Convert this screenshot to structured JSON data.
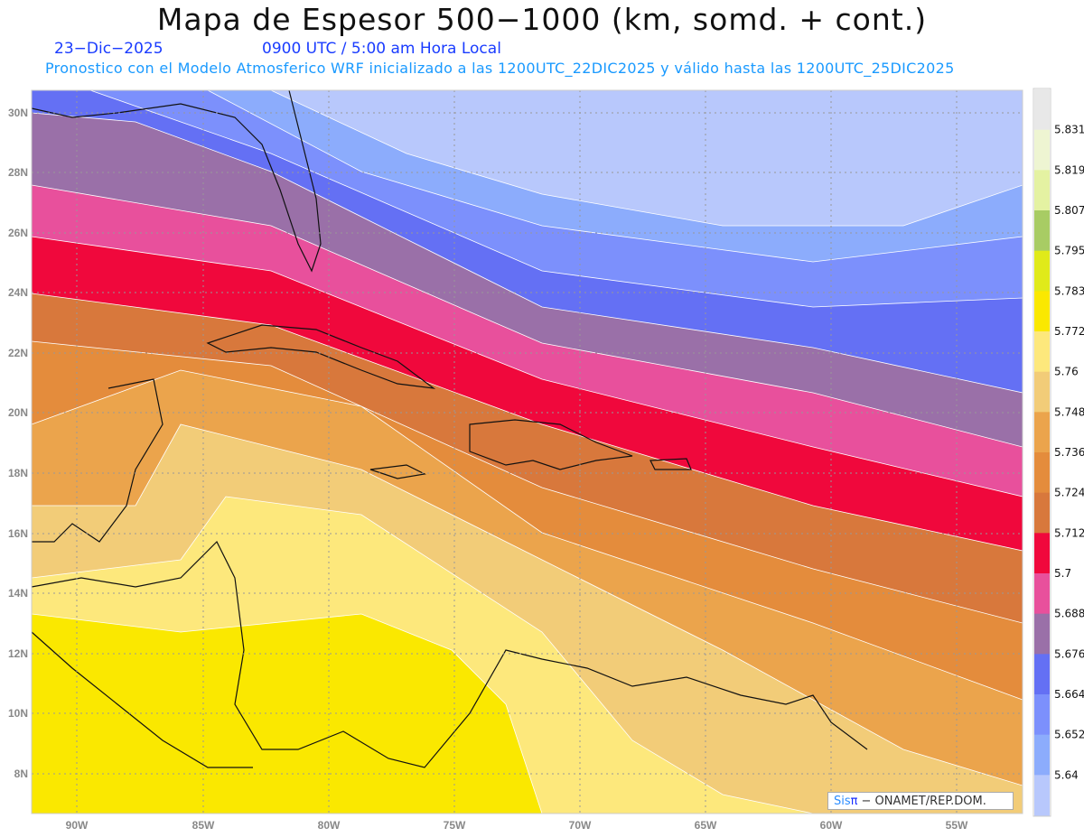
{
  "header": {
    "title": "Mapa de Espesor 500−1000 (km, somd. + cont.)",
    "date": "23−Dic−2025",
    "time": "0900 UTC / 5:00 am Hora Local",
    "subtitle": "Pronostico con el Modelo Atmosferico WRF inicializado a las 1200UTC_22DIC2025 y válido hasta las  1200UTC_25DIC2025"
  },
  "axes": {
    "lon_labels": [
      "90W",
      "85W",
      "80W",
      "75W",
      "70W",
      "65W",
      "60W",
      "55W"
    ],
    "lat_labels": [
      "30N",
      "28N",
      "26N",
      "24N",
      "22N",
      "20N",
      "18N",
      "16N",
      "14N",
      "12N",
      "10N",
      "8N"
    ]
  },
  "legend": {
    "levels": [
      "5.831",
      "5.819",
      "5.807",
      "5.795",
      "5.783",
      "5.772",
      "5.76",
      "5.748",
      "5.736",
      "5.724",
      "5.712",
      "5.7",
      "5.688",
      "5.676",
      "5.664",
      "5.652",
      "5.64"
    ],
    "colors": [
      "#e8e8e8",
      "#eef5d2",
      "#e4f2a2",
      "#a8cc64",
      "#e0ea1a",
      "#fae800",
      "#fde87c",
      "#f2cc78",
      "#eba44c",
      "#e48c3c",
      "#d8783c",
      "#f0083c",
      "#e8509c",
      "#9a70a8",
      "#6470f4",
      "#7c90fc",
      "#8cacfc",
      "#b8c8fc"
    ]
  },
  "credit": {
    "sis": "Sis",
    "pi": "π",
    "org": "−  ONAMET/REP.DOM."
  }
}
